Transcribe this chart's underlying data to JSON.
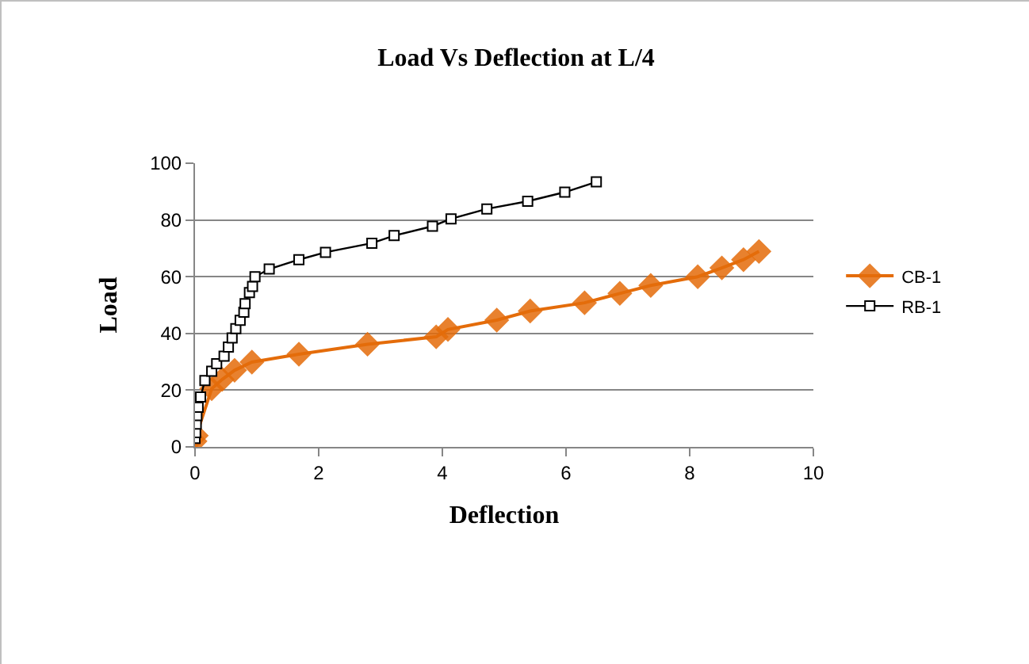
{
  "chart_data": {
    "type": "line",
    "title": "Load Vs Deflection at L/4",
    "xlabel": "Deflection",
    "ylabel": "Load",
    "xlim": [
      0,
      10
    ],
    "xticks": [
      0,
      2,
      4,
      6,
      8,
      10
    ],
    "ylim": [
      0,
      100
    ],
    "yticks": [
      0,
      20,
      40,
      60,
      80,
      100
    ],
    "grid": "y",
    "legend": "right",
    "line_style": "solid",
    "series": [
      {
        "name": "CB-1",
        "color": "#e46c0a",
        "marker": "diamond",
        "x": [
          0,
          0.02,
          0.27,
          0.44,
          0.64,
          0.92,
          1.68,
          2.79,
          3.9,
          4.09,
          4.88,
          5.42,
          6.3,
          6.87,
          7.37,
          8.13,
          8.52,
          8.87,
          9.12
        ],
        "values": [
          2,
          4,
          20.5,
          23.8,
          27,
          29.9,
          32.7,
          36.2,
          38.8,
          41.4,
          44.7,
          47.9,
          50.8,
          54.1,
          56.9,
          60,
          63.1,
          66,
          68.9
        ]
      },
      {
        "name": "RB-1",
        "color": "#000000",
        "marker": "square",
        "x": [
          0,
          0.01,
          0.02,
          0.03,
          0.05,
          0.09,
          0.16,
          0.27,
          0.35,
          0.47,
          0.54,
          0.6,
          0.66,
          0.73,
          0.79,
          0.81,
          0.88,
          0.93,
          0.97,
          1.2,
          1.68,
          2.11,
          2.86,
          3.22,
          3.84,
          4.14,
          4.72,
          5.38,
          5.98,
          6.49
        ],
        "values": [
          3,
          5,
          8,
          11,
          14,
          17.6,
          23.4,
          26.7,
          29.3,
          32,
          35.2,
          38.4,
          41.7,
          44.6,
          47.5,
          50.5,
          54.4,
          56.6,
          60,
          62.7,
          66,
          68.6,
          71.8,
          74.5,
          77.8,
          80.4,
          83.9,
          86.6,
          89.8,
          93.4
        ]
      }
    ]
  }
}
